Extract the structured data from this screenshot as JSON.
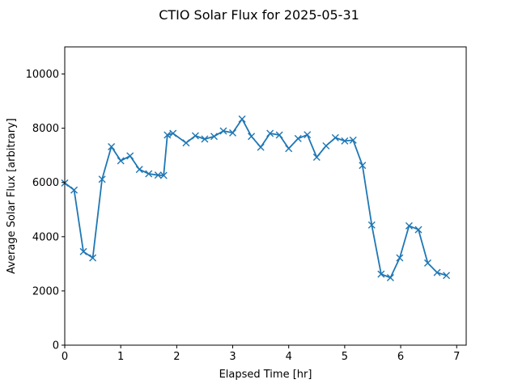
{
  "chart_data": {
    "type": "line",
    "title": "CTIO Solar Flux for 2025-05-31",
    "xlabel": "Elapsed Time [hr]",
    "ylabel": "Average Solar Flux [arbitrary]",
    "xlim": [
      0,
      7.17
    ],
    "ylim": [
      0,
      11000
    ],
    "xticks": [
      0,
      1,
      2,
      3,
      4,
      5,
      6,
      7
    ],
    "yticks": [
      0,
      2000,
      4000,
      6000,
      8000,
      10000
    ],
    "grid": false,
    "marker": "x",
    "color": "#1f77b4",
    "series": [
      {
        "x": [
          0.0,
          0.167,
          0.333,
          0.5,
          0.667,
          0.833,
          1.0,
          1.167,
          1.333,
          1.5,
          1.667,
          1.767,
          1.833,
          1.933,
          2.167,
          2.333,
          2.5,
          2.667,
          2.833,
          3.0,
          3.167,
          3.333,
          3.5,
          3.667,
          3.833,
          4.0,
          4.167,
          4.333,
          4.5,
          4.667,
          4.833,
          5.0,
          5.15,
          5.317,
          5.483,
          5.65,
          5.817,
          5.983,
          6.15,
          6.317,
          6.483,
          6.65,
          6.817
        ],
        "y": [
          5980,
          5720,
          3450,
          3220,
          6120,
          7320,
          6800,
          6980,
          6480,
          6320,
          6270,
          6260,
          7750,
          7810,
          7460,
          7720,
          7600,
          7700,
          7900,
          7830,
          8340,
          7700,
          7300,
          7810,
          7750,
          7250,
          7620,
          7760,
          6930,
          7350,
          7650,
          7530,
          7560,
          6630,
          4430,
          2620,
          2490,
          3220,
          4400,
          4260,
          3030,
          2680,
          2570
        ]
      }
    ]
  }
}
